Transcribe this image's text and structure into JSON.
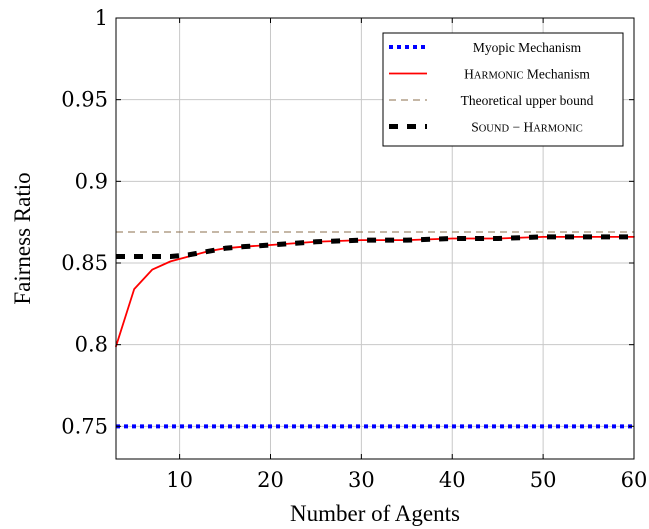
{
  "chart_data": {
    "type": "line",
    "xlabel": "Number of Agents",
    "ylabel": "Fairness Ratio",
    "xlim": [
      3,
      60
    ],
    "ylim": [
      0.73,
      1.0
    ],
    "xticks": [
      10,
      20,
      30,
      40,
      50,
      60
    ],
    "xtick_labels": [
      "10",
      "20",
      "30",
      "40",
      "50",
      "60"
    ],
    "yticks": [
      0.75,
      0.8,
      0.85,
      0.9,
      0.95,
      1.0
    ],
    "ytick_labels": [
      "0.75",
      "0.8",
      "0.85",
      "0.9",
      "0.95",
      "1"
    ],
    "grid": true,
    "legend_position": "top-right",
    "series": [
      {
        "name": "Myopic Mechanism",
        "color": "#0000ff",
        "style": "dotted",
        "x": [
          3,
          60
        ],
        "y": [
          0.75,
          0.75
        ]
      },
      {
        "name": "Harmonic Mechanism",
        "color": "#ff0000",
        "style": "solid",
        "x": [
          3,
          5,
          7,
          9,
          11,
          13,
          15,
          17,
          20,
          25,
          30,
          35,
          40,
          45,
          50,
          55,
          60
        ],
        "y": [
          0.799,
          0.834,
          0.846,
          0.851,
          0.854,
          0.857,
          0.859,
          0.86,
          0.861,
          0.863,
          0.864,
          0.864,
          0.865,
          0.865,
          0.866,
          0.866,
          0.866
        ]
      },
      {
        "name": "Theoretical upper bound",
        "color": "#8b6f4e",
        "style": "dashed",
        "x": [
          3,
          60
        ],
        "y": [
          0.869,
          0.869
        ]
      },
      {
        "name": "Sound − Harmonic",
        "color": "#000000",
        "style": "thick-dashed",
        "x": [
          3,
          5,
          7,
          9,
          11,
          13,
          15,
          17,
          20,
          25,
          30,
          35,
          40,
          45,
          50,
          55,
          60
        ],
        "y": [
          0.854,
          0.854,
          0.854,
          0.854,
          0.855,
          0.857,
          0.859,
          0.86,
          0.861,
          0.863,
          0.864,
          0.864,
          0.865,
          0.865,
          0.866,
          0.866,
          0.866
        ]
      }
    ],
    "legend_labels": [
      {
        "first": "",
        "rest": "Myopic Mechanism"
      },
      {
        "first": "H",
        "rest": "ARMONIC",
        "suffix": " Mechanism"
      },
      {
        "first": "",
        "rest": "Theoretical upper bound"
      },
      {
        "first": "S",
        "rest": "OUND",
        "suffix": " − ",
        "first2": "H",
        "rest2": "ARMONIC"
      }
    ]
  }
}
